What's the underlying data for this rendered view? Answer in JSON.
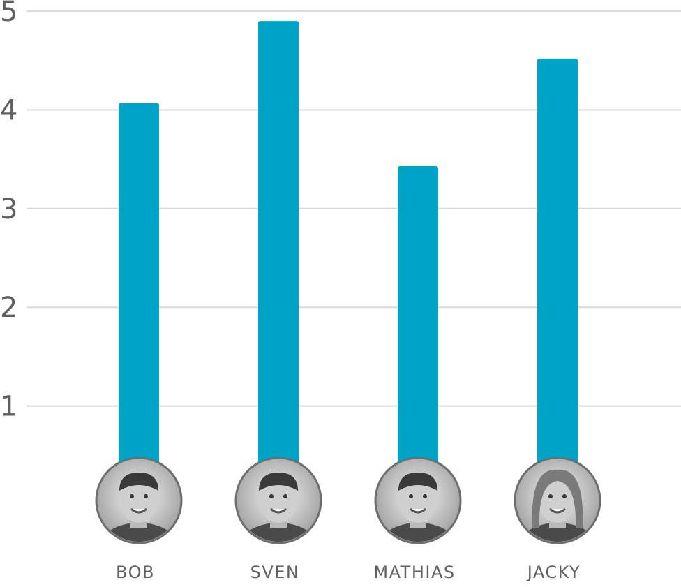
{
  "colors": {
    "bar": "#00a3c8",
    "grid": "#d9d9d9",
    "axis_text": "#5f5f5f",
    "avatar_ring": "#6e6e6e"
  },
  "chart_data": {
    "type": "bar",
    "categories": [
      "BOB",
      "SVEN",
      "MATHIAS",
      "JACKY"
    ],
    "values": [
      4.07,
      4.9,
      3.43,
      4.52
    ],
    "ylim": [
      0,
      5
    ],
    "yticks": [
      1,
      2,
      3,
      4,
      5
    ],
    "title": "",
    "xlabel": "",
    "ylabel": "",
    "grid": true,
    "avatars": [
      "avatar-photo",
      "avatar-photo",
      "avatar-photo",
      "avatar-photo"
    ]
  }
}
